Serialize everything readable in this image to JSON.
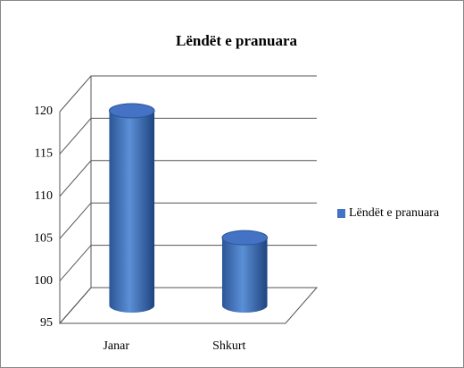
{
  "chart_data": {
    "type": "bar",
    "title": "Lëndët e pranuara",
    "categories": [
      "Janar",
      "Shkurt"
    ],
    "series": [
      {
        "name": "Lëndët e pranuara",
        "color": "#4472c4",
        "values": [
          118,
          103
        ]
      }
    ],
    "ylim": [
      95,
      120
    ],
    "yticks": [
      95,
      100,
      105,
      110,
      115,
      120
    ],
    "grid": true,
    "legend": "right"
  }
}
